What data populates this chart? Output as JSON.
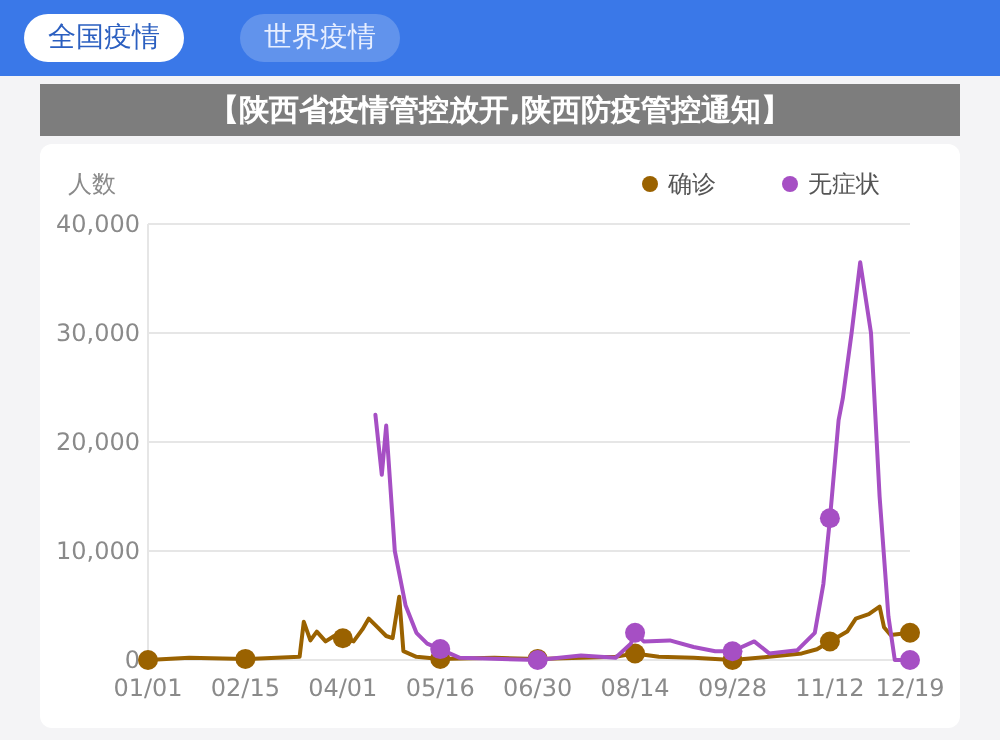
{
  "chart_data": {
    "type": "line",
    "title": "【陕西省疫情管控放开,陕西防疫管控通知】",
    "ylabel": "人数",
    "annotations": [
      "全国疫情",
      "世界疫情"
    ],
    "legend": "top right",
    "grid": "y",
    "xlim": [
      "--01-01",
      "--12-19"
    ],
    "xticks": [
      {
        "value": "--01-01",
        "label": "01/01"
      },
      {
        "value": "--02-15",
        "label": "02/15"
      },
      {
        "value": "--04-01",
        "label": "04/01"
      },
      {
        "value": "--05-16",
        "label": "05/16"
      },
      {
        "value": "--06-30",
        "label": "06/30"
      },
      {
        "value": "--08-14",
        "label": "08/14"
      },
      {
        "value": "--09-28",
        "label": "09/28"
      },
      {
        "value": "--11-12",
        "label": "11/12"
      },
      {
        "value": "--12-19",
        "label": "12/19"
      }
    ],
    "ylim": [
      0,
      40000
    ],
    "yticks": [
      0,
      {
        "value": 10000,
        "label": "10,000"
      },
      {
        "value": 20000,
        "label": "20,000"
      },
      {
        "value": 30000,
        "label": "30,000"
      },
      {
        "value": 40000,
        "label": "40,000"
      }
    ],
    "series": [
      {
        "name": "确诊",
        "color": "#9a6200",
        "x": [
          "--01-01",
          "--01-20",
          "--02-15",
          "--03-12",
          "--03-14",
          "--03-17",
          "--03-20",
          "--03-24",
          "--03-28",
          "--04-01",
          "--04-06",
          "--04-10",
          "--04-13",
          "--04-17",
          "--04-21",
          "--04-24",
          "--04-27",
          "--04-29",
          "--05-05",
          "--05-16",
          "--06-10",
          "--06-30",
          "--07-20",
          "--08-05",
          "--08-14",
          "--08-25",
          "--09-10",
          "--09-28",
          "--10-15",
          "--10-30",
          "--11-06",
          "--11-12",
          "--11-20",
          "--11-24",
          "--11-30",
          "--12-05",
          "--12-07",
          "--12-10",
          "--12-19"
        ],
        "values": [
          0,
          200,
          100,
          300,
          3500,
          1800,
          2600,
          1700,
          2200,
          2000,
          1700,
          2800,
          3800,
          3000,
          2200,
          2000,
          5800,
          800,
          300,
          100,
          200,
          100,
          200,
          300,
          600,
          300,
          200,
          0,
          300,
          600,
          1000,
          1700,
          2600,
          3800,
          4200,
          4900,
          3000,
          2300,
          2500
        ]
      },
      {
        "name": "无症状",
        "color": "#a64fc4",
        "x": [
          "--04-16",
          "--04-19",
          "--04-21",
          "--04-25",
          "--04-30",
          "--05-05",
          "--05-10",
          "--05-16",
          "--05-25",
          "--06-30",
          "--07-20",
          "--08-05",
          "--08-12",
          "--08-14",
          "--08-18",
          "--08-30",
          "--09-10",
          "--09-20",
          "--09-28",
          "--10-08",
          "--10-15",
          "--10-28",
          "--11-05",
          "--11-09",
          "--11-12",
          "--11-16",
          "--11-18",
          "--11-22",
          "--11-26",
          "--12-01",
          "--12-05",
          "--12-09",
          "--12-12",
          "--12-19"
        ],
        "values": [
          22500,
          17000,
          21500,
          10000,
          5000,
          2500,
          1500,
          1000,
          200,
          0,
          400,
          200,
          1500,
          2500,
          1700,
          1800,
          1200,
          800,
          800,
          1700,
          600,
          900,
          2500,
          7000,
          13000,
          22000,
          24000,
          30000,
          36500,
          30000,
          15000,
          4000,
          0,
          0
        ]
      }
    ]
  }
}
